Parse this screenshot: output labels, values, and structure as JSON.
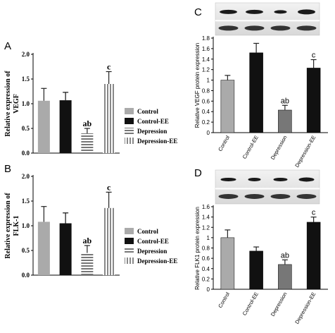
{
  "colors": {
    "control": "#aaaaaa",
    "control_ee": "#111111",
    "depression": "#777777",
    "depression_ee": "#999999",
    "blot_band": "#1a1a1a",
    "blot_bg": "#e6e6e6"
  },
  "chart_data": [
    {
      "panel": "A",
      "type": "bar",
      "categories": [
        "Control",
        "Control-EE",
        "Depression",
        "Depression-EE"
      ],
      "values": [
        1.06,
        1.07,
        0.4,
        1.4
      ],
      "errors": [
        0.25,
        0.16,
        0.1,
        0.25
      ],
      "annotations": [
        "",
        "",
        "ab",
        "c"
      ],
      "ylabel": "Relative expression of VEGF",
      "ylabel_lines": [
        "Relative expression of",
        "VEGF"
      ],
      "ylim": [
        0,
        2.0
      ],
      "yticks": [
        "0.0",
        "0.5",
        "1.0",
        "1.5",
        "2.0"
      ],
      "legend": [
        "Control",
        "Control-EE",
        "Depression",
        "Depression-EE"
      ],
      "legend_position": "right"
    },
    {
      "panel": "B",
      "type": "bar",
      "categories": [
        "Control",
        "Control-EE",
        "Depression",
        "Depression-EE"
      ],
      "values": [
        1.08,
        1.05,
        0.45,
        1.36
      ],
      "errors": [
        0.31,
        0.21,
        0.15,
        0.32
      ],
      "annotations": [
        "",
        "",
        "ab",
        "c"
      ],
      "ylabel": "Relative expression of FLK-1",
      "ylabel_lines": [
        "Relative expression of",
        "FLK-1"
      ],
      "ylim": [
        0,
        2.0
      ],
      "yticks": [
        "0.0",
        "0.5",
        "1.0",
        "1.5",
        "2.0"
      ],
      "legend": [
        "Control",
        "Control-EE",
        "Depression",
        "Depression-EE"
      ],
      "legend_position": "right"
    },
    {
      "panel": "C",
      "type": "bar",
      "categories": [
        "Control",
        "Control-EE",
        "Depression",
        "Depression-EE"
      ],
      "values": [
        1.0,
        1.52,
        0.43,
        1.23
      ],
      "errors": [
        0.09,
        0.18,
        0.09,
        0.16
      ],
      "annotations": [
        "",
        "",
        "ab",
        "c"
      ],
      "ylabel": "Relative VEGF protein expression",
      "ylim": [
        0,
        1.8
      ],
      "yticks": [
        "0",
        "0.2",
        "0.4",
        "0.6",
        "0.8",
        "1",
        "1.2",
        "1.4",
        "1.6",
        "1.8"
      ]
    },
    {
      "panel": "D",
      "type": "bar",
      "categories": [
        "Control",
        "Control-EE",
        "Depression",
        "Depression-EE"
      ],
      "values": [
        1.0,
        0.74,
        0.48,
        1.3
      ],
      "errors": [
        0.15,
        0.08,
        0.09,
        0.1
      ],
      "annotations": [
        "",
        "",
        "ab",
        "c"
      ],
      "ylabel": "Relative FLK1 protein expression",
      "ylim": [
        0,
        1.6
      ],
      "yticks": [
        "0",
        "0.2",
        "0.4",
        "0.6",
        "0.8",
        "1",
        "1.2",
        "1.4",
        "1.6"
      ]
    }
  ]
}
